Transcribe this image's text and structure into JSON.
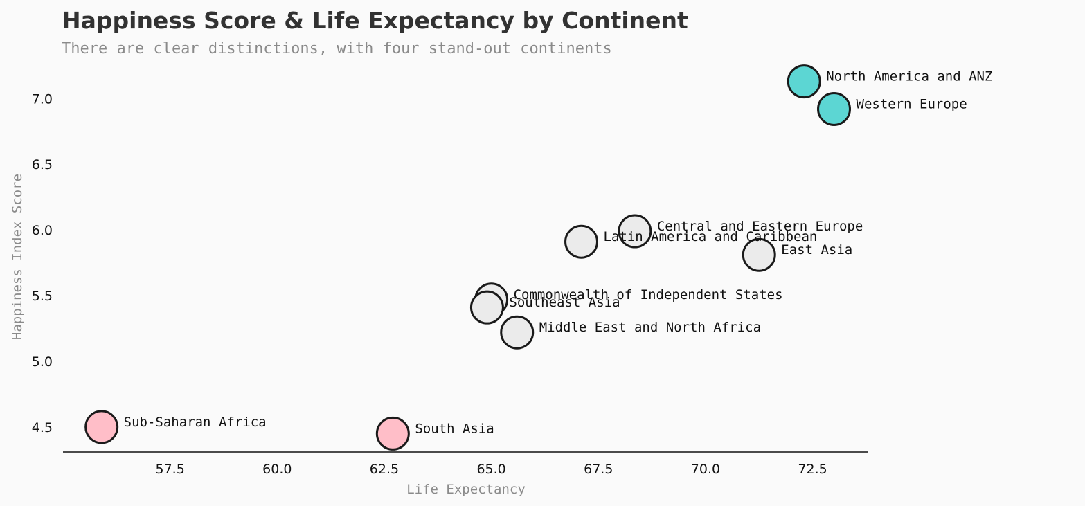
{
  "chart_data": {
    "type": "scatter",
    "title": "Happiness Score & Life Expectancy by Continent",
    "subtitle": "There are clear distinctions, with four stand-out continents",
    "xlabel": "Life Expectancy",
    "ylabel": "Happiness Index Score",
    "xlim": [
      55.0,
      73.8
    ],
    "ylim": [
      4.31,
      7.27
    ],
    "xticks": [
      57.5,
      60.0,
      62.5,
      65.0,
      67.5,
      70.0,
      72.5
    ],
    "xtick_labels": [
      "57.5",
      "60.0",
      "62.5",
      "65.0",
      "67.5",
      "70.0",
      "72.5"
    ],
    "yticks": [
      4.5,
      5.0,
      5.5,
      6.0,
      6.5,
      7.0
    ],
    "ytick_labels": [
      "4.5",
      "5.0",
      "5.5",
      "6.0",
      "6.5",
      "7.0"
    ],
    "grid": false,
    "colors": {
      "highlight_top": "#5cd6d3",
      "highlight_bottom": "#ffbec8",
      "default": "#ebebeb",
      "edge": "#1a1a1a"
    },
    "points": [
      {
        "name": "North America and ANZ",
        "x": 72.3,
        "y": 7.13,
        "group": "highlight_top"
      },
      {
        "name": "Western Europe",
        "x": 73.0,
        "y": 6.92,
        "group": "highlight_top"
      },
      {
        "name": "Central and Eastern Europe",
        "x": 68.35,
        "y": 5.99,
        "group": "default"
      },
      {
        "name": "Latin America and Caribbean",
        "x": 67.1,
        "y": 5.91,
        "group": "default"
      },
      {
        "name": "East Asia",
        "x": 71.25,
        "y": 5.81,
        "group": "default"
      },
      {
        "name": "Commonwealth of Independent States",
        "x": 65.0,
        "y": 5.47,
        "group": "default"
      },
      {
        "name": "Southeast Asia",
        "x": 64.9,
        "y": 5.41,
        "group": "default"
      },
      {
        "name": "Middle East and North Africa",
        "x": 65.6,
        "y": 5.22,
        "group": "default"
      },
      {
        "name": "Sub-Saharan Africa",
        "x": 55.9,
        "y": 4.5,
        "group": "highlight_bottom"
      },
      {
        "name": "South Asia",
        "x": 62.7,
        "y": 4.45,
        "group": "highlight_bottom"
      }
    ]
  }
}
